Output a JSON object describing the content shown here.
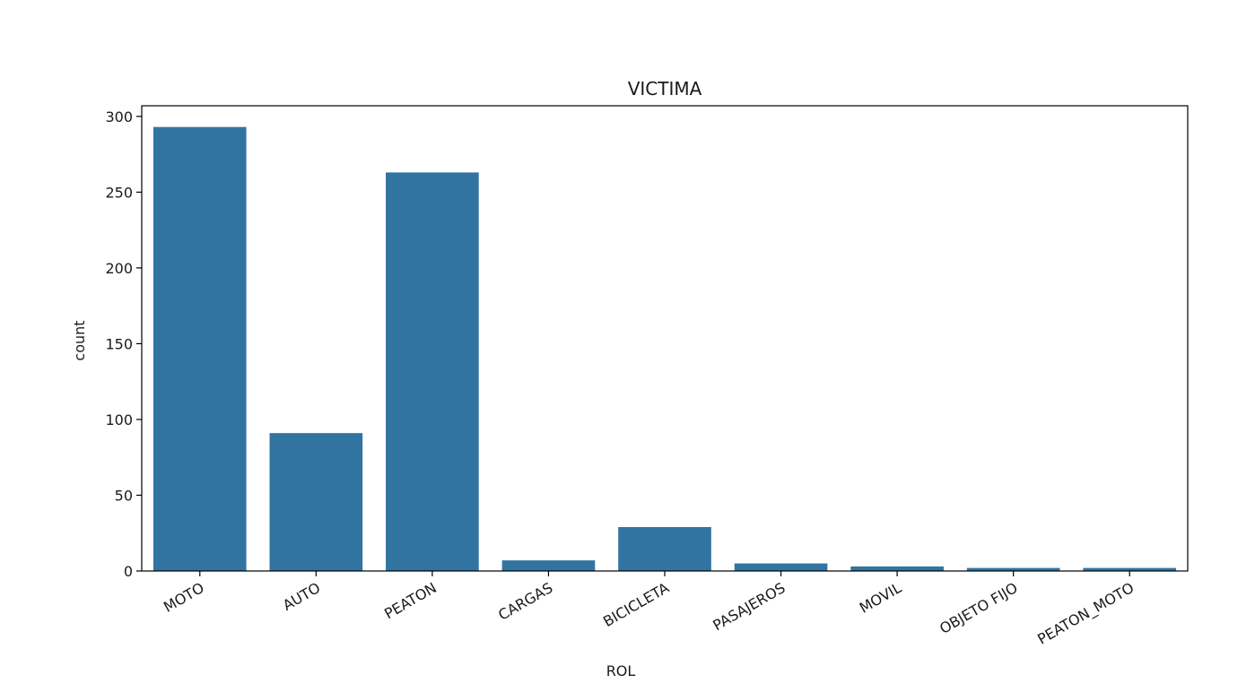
{
  "chart_data": {
    "type": "bar",
    "title": "VICTIMA",
    "xlabel": "ROL",
    "ylabel": "count",
    "categories": [
      "MOTO",
      "AUTO",
      "PEATON",
      "CARGAS",
      "BICICLETA",
      "PASAJEROS",
      "MOVIL",
      "OBJETO FIJO",
      "PEATON_MOTO"
    ],
    "values": [
      293,
      91,
      263,
      7,
      29,
      5,
      3,
      2,
      2
    ],
    "ylim": [
      0,
      307
    ],
    "yticks": [
      0,
      50,
      100,
      150,
      200,
      250,
      300
    ],
    "bar_color": "#3274a1",
    "grid": false,
    "legend": "none"
  }
}
